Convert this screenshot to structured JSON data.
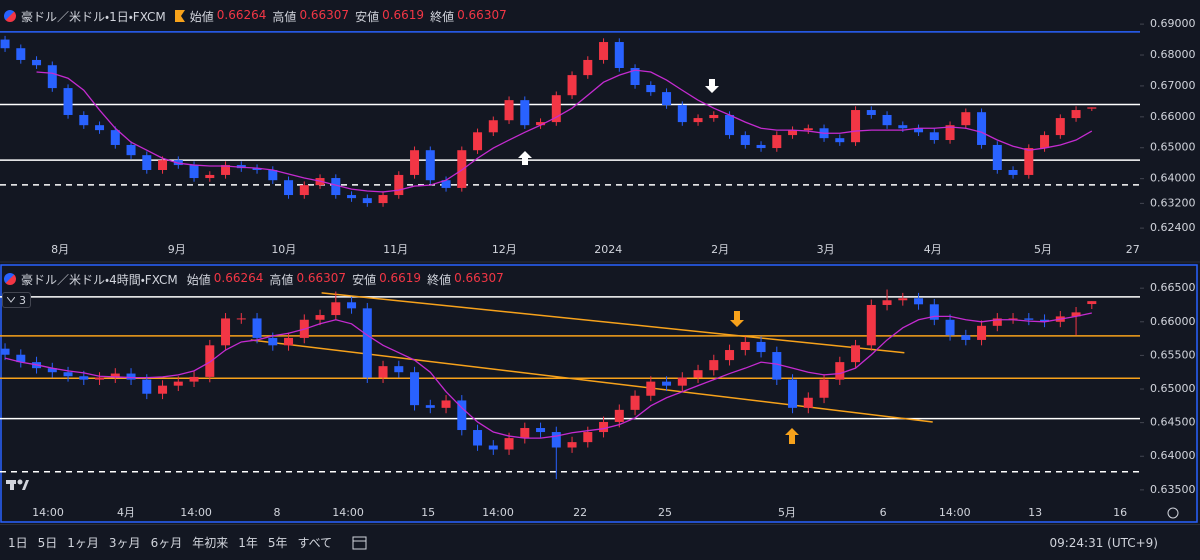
{
  "chart_data": [
    {
      "type": "candlestick",
      "title": "豪ドル／米ドル・1日・FXCM",
      "ohlc_labels": [
        "始値",
        "高値",
        "安値",
        "終値"
      ],
      "up_color": "#f23645",
      "down_color": "#2962ff",
      "ma_color": "#c42bd0",
      "ylim": [
        0.6208,
        0.6978
      ],
      "yticks": [
        {
          "value": 0.69,
          "label": "0.69000"
        },
        {
          "value": 0.68,
          "label": "0.68000"
        },
        {
          "value": 0.67,
          "label": "0.67000"
        },
        {
          "value": 0.66,
          "label": "0.66000"
        },
        {
          "value": 0.65,
          "label": "0.65000"
        },
        {
          "value": 0.64,
          "label": "0.64000"
        },
        {
          "value": 0.632,
          "label": "0.63200"
        },
        {
          "value": 0.624,
          "label": "0.62400"
        }
      ],
      "xlim": [
        -0.32,
        72.06
      ],
      "xticks": [
        {
          "value": 3.5,
          "label": "8月"
        },
        {
          "value": 10.9,
          "label": "9月"
        },
        {
          "value": 17.7,
          "label": "10月"
        },
        {
          "value": 24.8,
          "label": "11月"
        },
        {
          "value": 31.7,
          "label": "12月"
        },
        {
          "value": 38.3,
          "label": "2024"
        },
        {
          "value": 45.4,
          "label": "2月"
        },
        {
          "value": 52.1,
          "label": "3月"
        },
        {
          "value": 58.9,
          "label": "4月"
        },
        {
          "value": 65.9,
          "label": "5月"
        },
        {
          "value": 71.6,
          "label": "27"
        }
      ],
      "hlines": [
        {
          "value": 0.6875,
          "color": "#2962ff"
        },
        {
          "value": 0.664,
          "color": "#ffffff"
        },
        {
          "value": 0.646,
          "color": "#ffffff"
        },
        {
          "value": 0.638,
          "color": "#ffffff",
          "dash": true
        }
      ],
      "open": [
        0.685,
        0.6822,
        0.6784,
        0.6767,
        0.6693,
        0.6606,
        0.6573,
        0.6557,
        0.6509,
        0.6476,
        0.6428,
        0.646,
        0.6444,
        0.6402,
        0.6412,
        0.6444,
        0.6434,
        0.6428,
        0.6395,
        0.6347,
        0.6379,
        0.6402,
        0.6347,
        0.6337,
        0.6321,
        0.6347,
        0.6412,
        0.6492,
        0.6395,
        0.637,
        0.6492,
        0.655,
        0.6589,
        0.6654,
        0.6573,
        0.6583,
        0.667,
        0.6735,
        0.6784,
        0.6842,
        0.6758,
        0.6703,
        0.668,
        0.6638,
        0.6583,
        0.6596,
        0.6606,
        0.6541,
        0.6509,
        0.6499,
        0.6541,
        0.6557,
        0.6563,
        0.6531,
        0.6518,
        0.6622,
        0.6606,
        0.6573,
        0.6563,
        0.655,
        0.6525,
        0.6573,
        0.6615,
        0.6509,
        0.6428,
        0.6412,
        0.6499,
        0.6541,
        0.6596,
        0.66264
      ],
      "high": [
        0.6862,
        0.6834,
        0.6796,
        0.6779,
        0.6705,
        0.6618,
        0.6585,
        0.6569,
        0.6521,
        0.6488,
        0.6472,
        0.6472,
        0.6456,
        0.6424,
        0.6456,
        0.6456,
        0.6446,
        0.644,
        0.6407,
        0.6391,
        0.6414,
        0.6414,
        0.6359,
        0.6349,
        0.6359,
        0.6424,
        0.6504,
        0.6504,
        0.6407,
        0.6504,
        0.6562,
        0.6601,
        0.6666,
        0.6666,
        0.6595,
        0.6682,
        0.6747,
        0.6796,
        0.6854,
        0.6854,
        0.677,
        0.6715,
        0.6692,
        0.665,
        0.6608,
        0.6618,
        0.6618,
        0.6553,
        0.6521,
        0.6553,
        0.6569,
        0.6575,
        0.6575,
        0.6543,
        0.6634,
        0.6634,
        0.6618,
        0.6585,
        0.6575,
        0.6562,
        0.6585,
        0.6627,
        0.6627,
        0.6521,
        0.644,
        0.6511,
        0.6553,
        0.6608,
        0.6634,
        0.66307
      ],
      "low": [
        0.681,
        0.6772,
        0.6755,
        0.6681,
        0.6594,
        0.6561,
        0.6545,
        0.6497,
        0.6464,
        0.6416,
        0.6416,
        0.6432,
        0.639,
        0.639,
        0.64,
        0.6422,
        0.6416,
        0.6383,
        0.6335,
        0.6335,
        0.6367,
        0.6335,
        0.6325,
        0.6309,
        0.6309,
        0.6335,
        0.64,
        0.6383,
        0.6358,
        0.6358,
        0.648,
        0.6538,
        0.6577,
        0.6561,
        0.6561,
        0.6571,
        0.6658,
        0.6723,
        0.6772,
        0.6746,
        0.6691,
        0.6668,
        0.6626,
        0.6571,
        0.6571,
        0.6584,
        0.6529,
        0.6497,
        0.6487,
        0.6487,
        0.6529,
        0.6545,
        0.6519,
        0.6506,
        0.6506,
        0.6594,
        0.6561,
        0.6551,
        0.6538,
        0.6513,
        0.6513,
        0.6561,
        0.6497,
        0.6416,
        0.64,
        0.64,
        0.6487,
        0.6529,
        0.6584,
        0.6619
      ],
      "close": [
        0.6822,
        0.6784,
        0.6767,
        0.6693,
        0.6606,
        0.6573,
        0.6557,
        0.6509,
        0.6476,
        0.6428,
        0.646,
        0.6444,
        0.6402,
        0.6412,
        0.6444,
        0.6434,
        0.6428,
        0.6395,
        0.6347,
        0.6379,
        0.6402,
        0.6347,
        0.6337,
        0.6321,
        0.6347,
        0.6412,
        0.6492,
        0.6395,
        0.637,
        0.6492,
        0.655,
        0.6589,
        0.6654,
        0.6573,
        0.6583,
        0.667,
        0.6735,
        0.6784,
        0.6842,
        0.6758,
        0.6703,
        0.668,
        0.6638,
        0.6583,
        0.6596,
        0.6606,
        0.6541,
        0.6509,
        0.6499,
        0.6541,
        0.6557,
        0.6563,
        0.6531,
        0.6518,
        0.6622,
        0.6606,
        0.6573,
        0.6563,
        0.655,
        0.6525,
        0.6573,
        0.6615,
        0.6509,
        0.6428,
        0.6412,
        0.6499,
        0.6541,
        0.6596,
        0.6622,
        0.66307
      ],
      "ma": [
        null,
        null,
        0.6745,
        0.6741,
        0.6725,
        0.6686,
        0.6622,
        0.6563,
        0.6518,
        0.6492,
        0.6466,
        0.645,
        0.6444,
        0.6441,
        0.6441,
        0.6437,
        0.6434,
        0.6428,
        0.6415,
        0.6402,
        0.6392,
        0.6379,
        0.6366,
        0.636,
        0.6357,
        0.6363,
        0.6376,
        0.6379,
        0.6395,
        0.6428,
        0.6466,
        0.6499,
        0.6525,
        0.655,
        0.6573,
        0.6599,
        0.6628,
        0.667,
        0.6712,
        0.6735,
        0.6751,
        0.6745,
        0.6719,
        0.6686,
        0.6654,
        0.6628,
        0.6606,
        0.6583,
        0.6563,
        0.6557,
        0.6557,
        0.6554,
        0.6547,
        0.6547,
        0.6554,
        0.6557,
        0.6557,
        0.6557,
        0.6563,
        0.6563,
        0.6567,
        0.6563,
        0.655,
        0.6525,
        0.6505,
        0.6492,
        0.6499,
        0.6509,
        0.6525,
        0.6554
      ]
    },
    {
      "type": "candlestick",
      "title": "豪ドル／米ドル・4時間・FXCM",
      "ohlc_labels": [
        "始値",
        "高値",
        "安値",
        "終値"
      ],
      "indicator_count": 3,
      "up_color": "#f23645",
      "down_color": "#2962ff",
      "ma_color": "#c42bd0",
      "ylim": [
        0.6326,
        0.668
      ],
      "yticks": [
        {
          "value": 0.665,
          "label": "0.66500"
        },
        {
          "value": 0.66,
          "label": "0.66000"
        },
        {
          "value": 0.655,
          "label": "0.65500"
        },
        {
          "value": 0.65,
          "label": "0.65000"
        },
        {
          "value": 0.645,
          "label": "0.64500"
        },
        {
          "value": 0.64,
          "label": "0.64000"
        },
        {
          "value": 0.635,
          "label": "0.63500"
        }
      ],
      "xlim": [
        -0.32,
        72.06
      ],
      "xticks": [
        {
          "value": 2.73,
          "label": "14:00"
        },
        {
          "value": 7.68,
          "label": "4月"
        },
        {
          "value": 12.13,
          "label": "14:00"
        },
        {
          "value": 17.27,
          "label": "8"
        },
        {
          "value": 21.78,
          "label": "14:00"
        },
        {
          "value": 26.86,
          "label": "15"
        },
        {
          "value": 31.3,
          "label": "14:00"
        },
        {
          "value": 36.51,
          "label": "22"
        },
        {
          "value": 41.9,
          "label": "25"
        },
        {
          "value": 49.65,
          "label": "5月"
        },
        {
          "value": 55.75,
          "label": "6"
        },
        {
          "value": 60.3,
          "label": "14:00"
        },
        {
          "value": 65.4,
          "label": "13"
        },
        {
          "value": 70.8,
          "label": "16"
        }
      ],
      "hlines": [
        {
          "value": 0.6637,
          "color": "#ffffff"
        },
        {
          "value": 0.6579,
          "color": "#f7a21b"
        },
        {
          "value": 0.6516,
          "color": "#f7a21b"
        },
        {
          "value": 0.6456,
          "color": "#ffffff"
        },
        {
          "value": 0.6377,
          "color": "#ffffff",
          "dash": true
        }
      ],
      "trendlines": [
        {
          "x": [
            20.1,
            57.1
          ],
          "y": [
            0.6643,
            0.6554
          ],
          "color": "#f7a21b"
        },
        {
          "x": [
            15.6,
            58.9
          ],
          "y": [
            0.6573,
            0.6451
          ],
          "color": "#f7a21b"
        }
      ],
      "open": [
        0.656,
        0.6551,
        0.654,
        0.6531,
        0.6525,
        0.6519,
        0.6514,
        0.6517,
        0.6523,
        0.6514,
        0.6493,
        0.6505,
        0.6511,
        0.6518,
        0.6565,
        0.6605,
        0.6605,
        0.6576,
        0.6565,
        0.6576,
        0.6603,
        0.661,
        0.6629,
        0.662,
        0.6517,
        0.6534,
        0.6525,
        0.6476,
        0.6472,
        0.6483,
        0.6439,
        0.6416,
        0.641,
        0.6427,
        0.6442,
        0.6436,
        0.6413,
        0.6421,
        0.6436,
        0.6451,
        0.6469,
        0.649,
        0.6511,
        0.6505,
        0.6517,
        0.6528,
        0.6543,
        0.6558,
        0.657,
        0.6555,
        0.6514,
        0.6472,
        0.6487,
        0.6514,
        0.654,
        0.6565,
        0.6625,
        0.6632,
        0.6635,
        0.6626,
        0.6603,
        0.658,
        0.6573,
        0.6594,
        0.6605,
        0.6605,
        0.6603,
        0.66,
        0.6608,
        0.66264
      ],
      "high": [
        0.6568,
        0.6559,
        0.6548,
        0.6539,
        0.6533,
        0.6527,
        0.6525,
        0.6531,
        0.6531,
        0.6522,
        0.6513,
        0.6519,
        0.6526,
        0.6573,
        0.6613,
        0.6613,
        0.6613,
        0.6584,
        0.6584,
        0.6611,
        0.6618,
        0.6645,
        0.6637,
        0.6628,
        0.6542,
        0.6542,
        0.6533,
        0.6484,
        0.6491,
        0.6491,
        0.6447,
        0.6424,
        0.6435,
        0.645,
        0.645,
        0.6444,
        0.6429,
        0.6444,
        0.6459,
        0.6477,
        0.6498,
        0.6519,
        0.6519,
        0.6525,
        0.6536,
        0.6551,
        0.6566,
        0.6578,
        0.6578,
        0.6563,
        0.6522,
        0.6495,
        0.6522,
        0.6548,
        0.6573,
        0.6633,
        0.6648,
        0.6643,
        0.6643,
        0.6634,
        0.6611,
        0.6588,
        0.6602,
        0.6613,
        0.6613,
        0.6613,
        0.6611,
        0.6616,
        0.6622,
        0.66307
      ],
      "low": [
        0.6543,
        0.6532,
        0.6523,
        0.6517,
        0.6511,
        0.6506,
        0.6506,
        0.6509,
        0.6506,
        0.6485,
        0.6485,
        0.6497,
        0.6503,
        0.651,
        0.6557,
        0.6597,
        0.6568,
        0.6557,
        0.6557,
        0.6568,
        0.6595,
        0.6602,
        0.6612,
        0.6509,
        0.6509,
        0.6517,
        0.6468,
        0.6464,
        0.6464,
        0.6431,
        0.6408,
        0.6402,
        0.6402,
        0.6419,
        0.6428,
        0.6366,
        0.6405,
        0.6413,
        0.6428,
        0.6443,
        0.6461,
        0.6482,
        0.6497,
        0.6497,
        0.6509,
        0.652,
        0.6535,
        0.655,
        0.6547,
        0.6506,
        0.6464,
        0.6464,
        0.6479,
        0.6506,
        0.6532,
        0.6557,
        0.6617,
        0.6624,
        0.6618,
        0.6595,
        0.6572,
        0.6565,
        0.6565,
        0.6586,
        0.6597,
        0.6595,
        0.6592,
        0.6592,
        0.658,
        0.6619
      ],
      "close": [
        0.6551,
        0.654,
        0.6531,
        0.6525,
        0.6519,
        0.6514,
        0.6517,
        0.6523,
        0.6514,
        0.6493,
        0.6505,
        0.6511,
        0.6518,
        0.6565,
        0.6605,
        0.6605,
        0.6576,
        0.6565,
        0.6576,
        0.6603,
        0.661,
        0.6629,
        0.662,
        0.6517,
        0.6534,
        0.6525,
        0.6476,
        0.6472,
        0.6483,
        0.6439,
        0.6416,
        0.641,
        0.6427,
        0.6442,
        0.6436,
        0.6413,
        0.6421,
        0.6436,
        0.6451,
        0.6469,
        0.649,
        0.6511,
        0.6505,
        0.6517,
        0.6528,
        0.6543,
        0.6558,
        0.657,
        0.6555,
        0.6514,
        0.6472,
        0.6487,
        0.6514,
        0.654,
        0.6565,
        0.6625,
        0.6632,
        0.6635,
        0.6626,
        0.6603,
        0.658,
        0.6573,
        0.6594,
        0.6605,
        0.6605,
        0.6603,
        0.66,
        0.6608,
        0.6614,
        0.66307
      ],
      "ma": [
        0.6546,
        0.654,
        0.6536,
        0.6531,
        0.6527,
        0.6524,
        0.6519,
        0.6518,
        0.6517,
        0.6517,
        0.6518,
        0.6521,
        0.6527,
        0.654,
        0.6558,
        0.657,
        0.6573,
        0.6579,
        0.6583,
        0.6589,
        0.6597,
        0.6603,
        0.6597,
        0.658,
        0.6565,
        0.6554,
        0.6543,
        0.6525,
        0.6496,
        0.6472,
        0.6451,
        0.6436,
        0.643,
        0.6427,
        0.6427,
        0.643,
        0.6435,
        0.6438,
        0.6441,
        0.6447,
        0.6457,
        0.6475,
        0.6487,
        0.6496,
        0.6505,
        0.6514,
        0.6523,
        0.6531,
        0.654,
        0.6537,
        0.6531,
        0.6525,
        0.6521,
        0.6523,
        0.6531,
        0.6551,
        0.6573,
        0.6591,
        0.6603,
        0.6608,
        0.6608,
        0.6603,
        0.66,
        0.6603,
        0.6603,
        0.6601,
        0.66,
        0.6604,
        0.6608,
        0.6613
      ]
    }
  ],
  "toolbar": {
    "ranges": [
      "1日",
      "5日",
      "1ヶ月",
      "3ヶ月",
      "6ヶ月",
      "年初来",
      "1年",
      "5年",
      "すべて"
    ],
    "clock": "09:24:31 (UTC+9)"
  }
}
